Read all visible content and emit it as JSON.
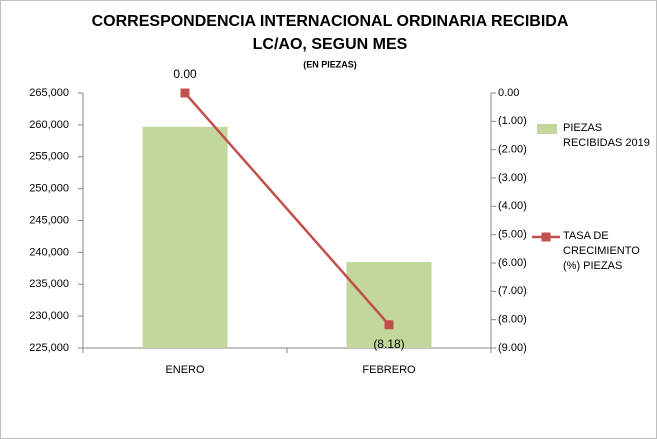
{
  "chart_data": {
    "type": "bar_line",
    "title": "CORRESPONDENCIA INTERNACIONAL  ORDINARIA RECIBIDA",
    "subtitle": "LC/AO, SEGUN MES",
    "note": "(EN PIEZAS)",
    "categories": [
      "ENERO",
      "FEBRERO"
    ],
    "series": [
      {
        "name": "PIEZAS RECIBIDAS 2019",
        "type": "bar",
        "color": "#c3d69b",
        "values": [
          259700,
          238500
        ]
      },
      {
        "name": "TASA DE CRECIMIENTO  (%) PIEZAS",
        "type": "line",
        "axis": "y2",
        "color": "#c0504d",
        "values": [
          0,
          -8.18
        ],
        "value_labels": [
          "0.00",
          "(8.18)"
        ]
      }
    ],
    "ylim": [
      225000,
      265000
    ],
    "yticks": [
      {
        "value": 225000,
        "label": "225,000"
      },
      {
        "value": 230000,
        "label": "230,000"
      },
      {
        "value": 235000,
        "label": "235,000"
      },
      {
        "value": 240000,
        "label": "240,000"
      },
      {
        "value": 245000,
        "label": "245,000"
      },
      {
        "value": 250000,
        "label": "250,000"
      },
      {
        "value": 255000,
        "label": "255,000"
      },
      {
        "value": 260000,
        "label": "260,000"
      },
      {
        "value": 265000,
        "label": "265,000"
      }
    ],
    "y2lim": [
      -9,
      0
    ],
    "y2ticks": [
      {
        "value": 0,
        "label": "0.00"
      },
      {
        "value": -1,
        "label": "(1.00)"
      },
      {
        "value": -2,
        "label": "(2.00)"
      },
      {
        "value": -3,
        "label": "(3.00)"
      },
      {
        "value": -4,
        "label": "(4.00)"
      },
      {
        "value": -5,
        "label": "(5.00)"
      },
      {
        "value": -6,
        "label": "(6.00)"
      },
      {
        "value": -7,
        "label": "(7.00)"
      },
      {
        "value": -8,
        "label": "(8.00)"
      },
      {
        "value": -9,
        "label": "(9.00)"
      }
    ],
    "legend": "right"
  }
}
